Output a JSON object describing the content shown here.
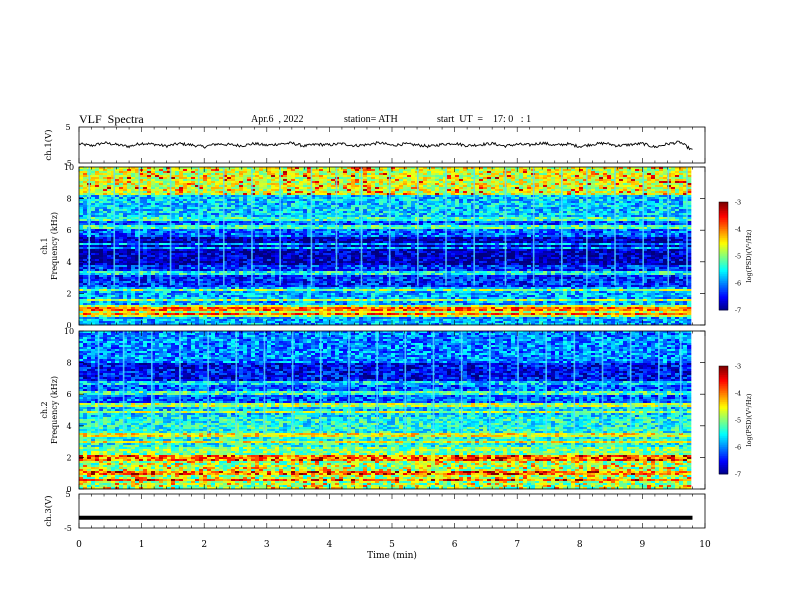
{
  "header": {
    "title": "VLF  Spectra",
    "date": "Apr.6  , 2022",
    "station": "station= ATH",
    "start": "start  UT  =    17: 0   : 1"
  },
  "chart_data": [
    {
      "type": "line",
      "panel": "ch1-waveform",
      "ylabel": "ch.1(V)",
      "ylim": [
        -5,
        5
      ],
      "yticks": [
        "5",
        "-5"
      ],
      "xlim": [
        0,
        10
      ],
      "line_color": "#000000",
      "x": [
        0,
        0.2,
        0.4,
        0.6,
        0.8,
        1,
        1.2,
        1.4,
        1.6,
        1.8,
        2,
        2.2,
        2.4,
        2.6,
        2.8,
        3,
        3.2,
        3.4,
        3.6,
        3.8,
        4,
        4.2,
        4.4,
        4.6,
        4.8,
        5,
        5.2,
        5.4,
        5.6,
        5.8,
        6,
        6.2,
        6.4,
        6.6,
        6.8,
        7,
        7.2,
        7.4,
        7.6,
        7.8,
        8,
        8.2,
        8.4,
        8.6,
        8.8,
        9,
        9.2,
        9.4,
        9.6,
        9.8
      ],
      "y": [
        0.3,
        -0.2,
        0.6,
        0.1,
        -0.4,
        0.5,
        0.2,
        -0.3,
        0.4,
        0,
        -0.5,
        0.3,
        0.1,
        -0.2,
        0.4,
        -0.1,
        0.3,
        0.5,
        -0.3,
        0.2,
        0,
        0.4,
        -0.2,
        0.1,
        0.6,
        -0.1,
        0.3,
        0,
        -0.4,
        0.2,
        0.5,
        -0.2,
        0.1,
        0.4,
        -0.3,
        0.2,
        0,
        0.6,
        -0.1,
        0.3,
        -0.4,
        0.2,
        0.5,
        -0.2,
        0.1,
        0.4,
        -0.6,
        0.3,
        0.8,
        -1.5
      ]
    },
    {
      "type": "heatmap",
      "panel": "ch1-spectrogram",
      "ylabel": "ch.1\nFrequency  (kHz)",
      "ylim": [
        0,
        10
      ],
      "yticks": [
        "0",
        "2",
        "4",
        "6",
        "8",
        "10"
      ],
      "xlim": [
        0,
        10
      ],
      "colorbar": {
        "label": "log(PSD)(V²/Hz)",
        "range": [
          -7,
          -3
        ],
        "ticks": [
          "-3",
          "-4",
          "-5",
          "-6",
          "-7"
        ]
      },
      "bands_khz": [
        0.7,
        1.0,
        1.6,
        2.2,
        3.3,
        4.9,
        5.1,
        6.2,
        6.7
      ],
      "vertical_streaks_min": [
        0.15,
        0.55,
        0.95,
        1.45,
        1.9,
        2.3,
        2.75,
        3.2,
        3.7,
        4.1,
        4.5,
        4.95,
        5.4,
        5.85,
        6.3,
        6.8,
        7.25,
        7.7,
        8.1,
        8.55,
        9.0,
        9.4,
        9.7
      ]
    },
    {
      "type": "heatmap",
      "panel": "ch2-spectrogram",
      "ylabel": "ch.2\nFrequency  (kHz)",
      "ylim": [
        0,
        10
      ],
      "yticks": [
        "0",
        "2",
        "4",
        "6",
        "8",
        "10"
      ],
      "xlim": [
        0,
        10
      ],
      "colorbar": {
        "label": "log(PSD)(V²/Hz)",
        "range": [
          -7,
          -3
        ],
        "ticks": [
          "-3",
          "-4",
          "-5",
          "-6",
          "-7"
        ]
      },
      "bands_khz": [
        0.6,
        1.0,
        1.8,
        2.0,
        3.0,
        3.4,
        4.9,
        5.3,
        6.1,
        6.7
      ],
      "vertical_streaks_min": [
        0.3,
        0.7,
        1.15,
        1.6,
        2.05,
        2.5,
        2.95,
        3.4,
        3.85,
        4.3,
        4.75,
        5.2,
        5.65,
        6.1,
        6.55,
        7.0,
        7.45,
        7.9,
        8.35,
        8.8,
        9.25,
        9.6
      ]
    },
    {
      "type": "line",
      "panel": "ch3-waveform",
      "ylabel": "ch.3(V)",
      "ylim": [
        -5,
        5
      ],
      "yticks": [
        "5",
        "-5"
      ],
      "xlim": [
        0,
        10
      ],
      "xlabel": "Time  (min)",
      "xticks": [
        "0",
        "1",
        "2",
        "3",
        "4",
        "5",
        "6",
        "7",
        "8",
        "9",
        "10"
      ],
      "line_color": "#000000",
      "x": [
        0,
        9.8
      ],
      "y": [
        -2,
        -2
      ]
    }
  ]
}
